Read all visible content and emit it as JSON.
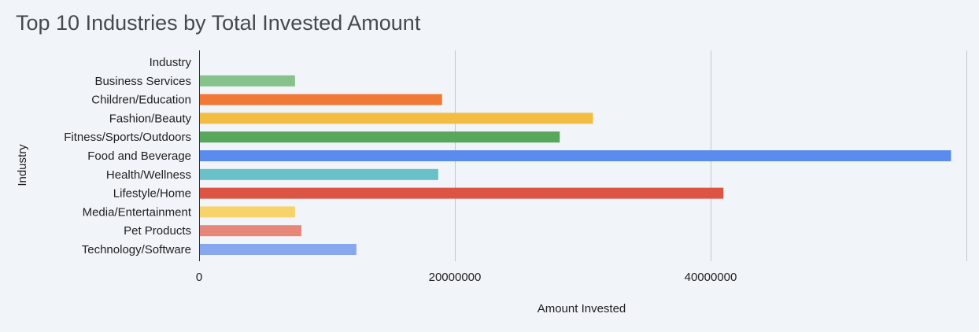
{
  "chart_data": {
    "type": "bar",
    "orientation": "horizontal",
    "title": "Top 10 Industries by Total Invested Amount",
    "xlabel": "Amount Invested",
    "ylabel": "Industry",
    "xlim": [
      0,
      60000000
    ],
    "x_ticks": [
      0,
      20000000,
      40000000
    ],
    "x_tick_labels": [
      "0",
      "20000000",
      "40000000"
    ],
    "grid": true,
    "legend": "none",
    "categories": [
      "Industry",
      "Business Services",
      "Children/Education",
      "Fashion/Beauty",
      "Fitness/Sports/Outdoors",
      "Food and Beverage",
      "Health/Wellness",
      "Lifestyle/Home",
      "Media/Entertainment",
      "Pet Products",
      "Technology/Software"
    ],
    "values": [
      0,
      7500000,
      19000000,
      30800000,
      28200000,
      58800000,
      18700000,
      41000000,
      7500000,
      8000000,
      12300000
    ],
    "colors": [
      "#ffffff",
      "#88c28b",
      "#f07a35",
      "#f2bd42",
      "#59a65d",
      "#5b8ced",
      "#6ac0c7",
      "#db5444",
      "#f7d46b",
      "#e6877a",
      "#88a7ef"
    ]
  }
}
